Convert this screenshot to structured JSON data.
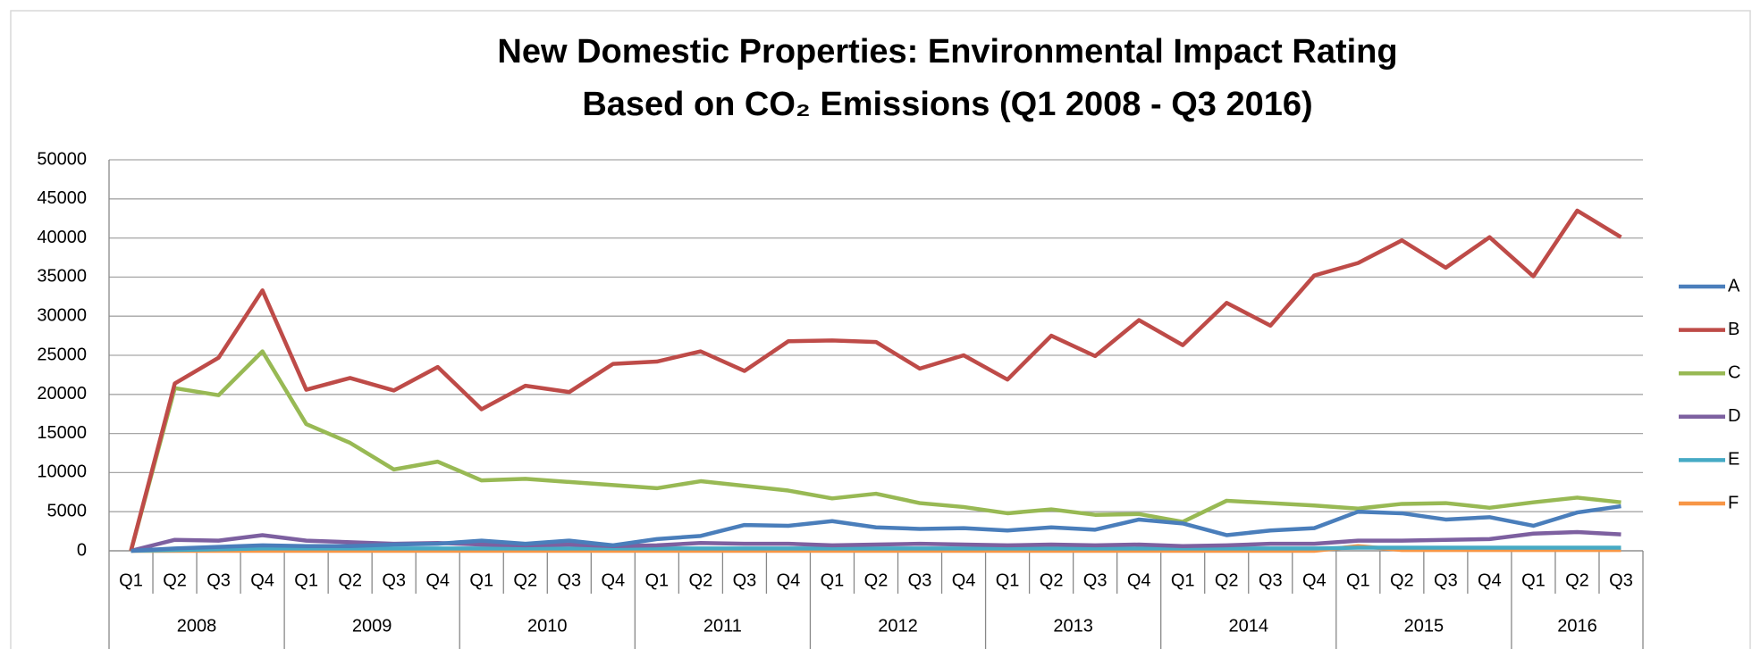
{
  "chart_data": {
    "type": "line",
    "title": [
      "New Domestic Properties: Environmental Impact Rating",
      "Based on CO₂ Emissions (Q1 2008 - Q3 2016)"
    ],
    "categories": [
      "Q1",
      "Q2",
      "Q3",
      "Q4",
      "Q1",
      "Q2",
      "Q3",
      "Q4",
      "Q1",
      "Q2",
      "Q3",
      "Q4",
      "Q1",
      "Q2",
      "Q3",
      "Q4",
      "Q1",
      "Q2",
      "Q3",
      "Q4",
      "Q1",
      "Q2",
      "Q3",
      "Q4",
      "Q1",
      "Q2",
      "Q3",
      "Q4",
      "Q1",
      "Q2",
      "Q3",
      "Q4",
      "Q1",
      "Q2",
      "Q3"
    ],
    "years": [
      "2008",
      "2009",
      "2010",
      "2011",
      "2012",
      "2013",
      "2014",
      "2015",
      "2016"
    ],
    "ylim": [
      0,
      50000
    ],
    "yticks": [
      0,
      5000,
      10000,
      15000,
      20000,
      25000,
      30000,
      35000,
      40000,
      45000,
      50000
    ],
    "grid": true,
    "legend": "right",
    "series": [
      {
        "name": "A",
        "color": "#4a7ebb",
        "values": [
          0,
          300,
          500,
          700,
          600,
          600,
          800,
          900,
          1300,
          900,
          1300,
          700,
          1500,
          1900,
          3300,
          3200,
          3800,
          3000,
          2800,
          2900,
          2600,
          3000,
          2700,
          4000,
          3500,
          2000,
          2600,
          2900,
          5000,
          4800,
          4000,
          4300,
          3200,
          4900,
          5700
        ]
      },
      {
        "name": "B",
        "color": "#be4b48",
        "values": [
          0,
          21400,
          24700,
          33300,
          20600,
          22100,
          20500,
          23500,
          18100,
          21100,
          20300,
          23900,
          24200,
          25500,
          23000,
          26800,
          26900,
          26700,
          23300,
          25000,
          21900,
          27500,
          24900,
          29500,
          26300,
          31700,
          28800,
          35200,
          36800,
          39700,
          36200,
          40100,
          35100,
          43500,
          40100
        ]
      },
      {
        "name": "C",
        "color": "#98b954",
        "values": [
          0,
          20800,
          19900,
          25500,
          16200,
          13800,
          10400,
          11400,
          9000,
          9200,
          8800,
          8400,
          8000,
          8900,
          8300,
          7700,
          6700,
          7300,
          6100,
          5600,
          4800,
          5300,
          4600,
          4700,
          3700,
          6400,
          6100,
          5800,
          5400,
          6000,
          6100,
          5500,
          6200,
          6800,
          6200
        ]
      },
      {
        "name": "D",
        "color": "#7d60a0",
        "values": [
          0,
          1400,
          1300,
          2000,
          1300,
          1100,
          900,
          1000,
          800,
          700,
          800,
          600,
          700,
          1000,
          900,
          900,
          700,
          800,
          900,
          800,
          700,
          800,
          700,
          800,
          600,
          700,
          900,
          900,
          1300,
          1300,
          1400,
          1500,
          2200,
          2400,
          2100
        ]
      },
      {
        "name": "E",
        "color": "#46aac5",
        "values": [
          0,
          100,
          200,
          300,
          300,
          300,
          300,
          300,
          300,
          300,
          300,
          300,
          300,
          300,
          300,
          300,
          300,
          300,
          300,
          300,
          300,
          300,
          300,
          300,
          300,
          300,
          300,
          300,
          400,
          400,
          400,
          400,
          400,
          400,
          400
        ]
      },
      {
        "name": "F",
        "color": "#f79646",
        "values": [
          0,
          0,
          0,
          0,
          0,
          0,
          0,
          0,
          0,
          0,
          0,
          0,
          0,
          0,
          0,
          0,
          0,
          0,
          0,
          0,
          0,
          0,
          0,
          0,
          0,
          0,
          0,
          0,
          600,
          100,
          100,
          100,
          100,
          100,
          100
        ]
      }
    ]
  }
}
